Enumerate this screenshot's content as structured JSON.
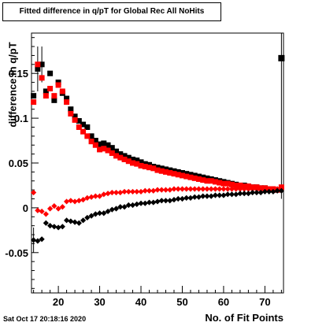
{
  "chart_data": {
    "type": "scatter",
    "title": "Fitted difference in q/pT for Global Rec All NoHits",
    "xlabel": "No. of Fit Points",
    "ylabel": "difference in q/pT",
    "xlim": [
      13.5,
      74.5
    ],
    "ylim": [
      -0.095,
      0.195
    ],
    "x_ticks": [
      20,
      30,
      40,
      50,
      60,
      70
    ],
    "x_tick_labels": [
      "20",
      "30",
      "40",
      "50",
      "60",
      "70"
    ],
    "y_ticks": [
      -0.05,
      0,
      0.05,
      0.1,
      0.15
    ],
    "y_tick_labels": [
      "-0.05",
      "0",
      "0.05",
      "0.1",
      "0.15"
    ],
    "series": [
      {
        "color": "#000000",
        "marker": "square",
        "points": [
          [
            14,
            0.125
          ],
          [
            15,
            0.155
          ],
          [
            16,
            0.16
          ],
          [
            17,
            0.13
          ],
          [
            18,
            0.15
          ],
          [
            19,
            0.12
          ],
          [
            20,
            0.14
          ],
          [
            21,
            0.128
          ],
          [
            22,
            0.122
          ],
          [
            23,
            0.11
          ],
          [
            24,
            0.102
          ],
          [
            25,
            0.097
          ],
          [
            26,
            0.093
          ],
          [
            27,
            0.09
          ],
          [
            28,
            0.08
          ],
          [
            29,
            0.075
          ],
          [
            30,
            0.071
          ],
          [
            31,
            0.072
          ],
          [
            32,
            0.07
          ],
          [
            33,
            0.067
          ],
          [
            34,
            0.063
          ],
          [
            35,
            0.06
          ],
          [
            36,
            0.058
          ],
          [
            37,
            0.056
          ],
          [
            38,
            0.054
          ],
          [
            39,
            0.053
          ],
          [
            40,
            0.051
          ],
          [
            41,
            0.049
          ],
          [
            42,
            0.048
          ],
          [
            43,
            0.046
          ],
          [
            44,
            0.045
          ],
          [
            45,
            0.044
          ],
          [
            46,
            0.043
          ],
          [
            47,
            0.042
          ],
          [
            48,
            0.041
          ],
          [
            49,
            0.04
          ],
          [
            50,
            0.039
          ],
          [
            51,
            0.038
          ],
          [
            52,
            0.037
          ],
          [
            53,
            0.036
          ],
          [
            54,
            0.035
          ],
          [
            55,
            0.034
          ],
          [
            56,
            0.033
          ],
          [
            57,
            0.032
          ],
          [
            58,
            0.031
          ],
          [
            59,
            0.03
          ],
          [
            60,
            0.029
          ],
          [
            61,
            0.028
          ],
          [
            62,
            0.027
          ],
          [
            63,
            0.026
          ],
          [
            64,
            0.025
          ],
          [
            65,
            0.025
          ],
          [
            66,
            0.024
          ],
          [
            67,
            0.023
          ],
          [
            68,
            0.023
          ],
          [
            69,
            0.022
          ],
          [
            70,
            0.022
          ],
          [
            71,
            0.021
          ],
          [
            72,
            0.02
          ],
          [
            73,
            0.02
          ],
          [
            74,
            0.167
          ]
        ]
      },
      {
        "color": "#ff0000",
        "marker": "square",
        "points": [
          [
            14,
            0.118
          ],
          [
            15,
            0.16
          ],
          [
            16,
            0.145
          ],
          [
            17,
            0.125
          ],
          [
            18,
            0.133
          ],
          [
            19,
            0.125
          ],
          [
            20,
            0.137
          ],
          [
            21,
            0.13
          ],
          [
            22,
            0.118
          ],
          [
            23,
            0.105
          ],
          [
            24,
            0.098
          ],
          [
            25,
            0.09
          ],
          [
            26,
            0.085
          ],
          [
            27,
            0.08
          ],
          [
            28,
            0.074
          ],
          [
            29,
            0.07
          ],
          [
            30,
            0.065
          ],
          [
            31,
            0.066
          ],
          [
            32,
            0.064
          ],
          [
            33,
            0.061
          ],
          [
            34,
            0.058
          ],
          [
            35,
            0.056
          ],
          [
            36,
            0.054
          ],
          [
            37,
            0.052
          ],
          [
            38,
            0.05
          ],
          [
            39,
            0.049
          ],
          [
            40,
            0.047
          ],
          [
            41,
            0.046
          ],
          [
            42,
            0.045
          ],
          [
            43,
            0.044
          ],
          [
            44,
            0.042
          ],
          [
            45,
            0.041
          ],
          [
            46,
            0.04
          ],
          [
            47,
            0.039
          ],
          [
            48,
            0.038
          ],
          [
            49,
            0.037
          ],
          [
            50,
            0.036
          ],
          [
            51,
            0.035
          ],
          [
            52,
            0.034
          ],
          [
            53,
            0.033
          ],
          [
            54,
            0.032
          ],
          [
            55,
            0.031
          ],
          [
            56,
            0.03
          ],
          [
            57,
            0.03
          ],
          [
            58,
            0.029
          ],
          [
            59,
            0.028
          ],
          [
            60,
            0.027
          ],
          [
            61,
            0.027
          ],
          [
            62,
            0.026
          ],
          [
            63,
            0.025
          ],
          [
            64,
            0.025
          ],
          [
            65,
            0.024
          ],
          [
            66,
            0.024
          ],
          [
            67,
            0.023
          ],
          [
            68,
            0.023
          ],
          [
            69,
            0.022
          ],
          [
            70,
            0.022
          ],
          [
            71,
            0.021
          ],
          [
            72,
            0.021
          ],
          [
            73,
            0.02
          ],
          [
            74,
            0.023
          ]
        ]
      },
      {
        "color": "#ff0000",
        "marker": "diamond",
        "points": [
          [
            14,
            0.017
          ],
          [
            15,
            -0.003
          ],
          [
            16,
            -0.004
          ],
          [
            17,
            -0.007
          ],
          [
            18,
            -0.001
          ],
          [
            19,
            0.002
          ],
          [
            20,
            -0.001
          ],
          [
            21,
            0.001
          ],
          [
            22,
            0.007
          ],
          [
            23,
            0.008
          ],
          [
            24,
            0.007
          ],
          [
            25,
            0.008
          ],
          [
            26,
            0.009
          ],
          [
            27,
            0.011
          ],
          [
            28,
            0.012
          ],
          [
            29,
            0.013
          ],
          [
            30,
            0.013
          ],
          [
            31,
            0.015
          ],
          [
            32,
            0.016
          ],
          [
            33,
            0.017
          ],
          [
            34,
            0.017
          ],
          [
            35,
            0.017
          ],
          [
            36,
            0.018
          ],
          [
            37,
            0.018
          ],
          [
            38,
            0.018
          ],
          [
            39,
            0.018
          ],
          [
            40,
            0.018
          ],
          [
            41,
            0.019
          ],
          [
            42,
            0.019
          ],
          [
            43,
            0.019
          ],
          [
            44,
            0.02
          ],
          [
            45,
            0.02
          ],
          [
            46,
            0.02
          ],
          [
            47,
            0.02
          ],
          [
            48,
            0.021
          ],
          [
            49,
            0.021
          ],
          [
            50,
            0.021
          ],
          [
            51,
            0.021
          ],
          [
            52,
            0.021
          ],
          [
            53,
            0.021
          ],
          [
            54,
            0.021
          ],
          [
            55,
            0.021
          ],
          [
            56,
            0.021
          ],
          [
            57,
            0.021
          ],
          [
            58,
            0.021
          ],
          [
            59,
            0.021
          ],
          [
            60,
            0.021
          ],
          [
            61,
            0.021
          ],
          [
            62,
            0.021
          ],
          [
            63,
            0.021
          ],
          [
            64,
            0.021
          ],
          [
            65,
            0.021
          ],
          [
            66,
            0.021
          ],
          [
            67,
            0.021
          ],
          [
            68,
            0.021
          ],
          [
            69,
            0.021
          ],
          [
            70,
            0.021
          ],
          [
            71,
            0.021
          ],
          [
            72,
            0.021
          ],
          [
            73,
            0.021
          ],
          [
            74,
            0.021
          ]
        ]
      },
      {
        "color": "#000000",
        "marker": "diamond",
        "points": [
          [
            14,
            -0.036
          ],
          [
            15,
            -0.037
          ],
          [
            16,
            -0.035
          ],
          [
            17,
            -0.017
          ],
          [
            18,
            -0.02
          ],
          [
            19,
            -0.021
          ],
          [
            20,
            -0.022
          ],
          [
            21,
            -0.021
          ],
          [
            22,
            -0.014
          ],
          [
            23,
            -0.015
          ],
          [
            24,
            -0.016
          ],
          [
            25,
            -0.017
          ],
          [
            26,
            -0.014
          ],
          [
            27,
            -0.011
          ],
          [
            28,
            -0.009
          ],
          [
            29,
            -0.007
          ],
          [
            30,
            -0.006
          ],
          [
            31,
            -0.006
          ],
          [
            32,
            -0.004
          ],
          [
            33,
            -0.002
          ],
          [
            34,
            -0.001
          ],
          [
            35,
            0.001
          ],
          [
            36,
            0.001
          ],
          [
            37,
            0.003
          ],
          [
            38,
            0.003
          ],
          [
            39,
            0.004
          ],
          [
            40,
            0.005
          ],
          [
            41,
            0.005
          ],
          [
            42,
            0.006
          ],
          [
            43,
            0.006
          ],
          [
            44,
            0.007
          ],
          [
            45,
            0.008
          ],
          [
            46,
            0.008
          ],
          [
            47,
            0.008
          ],
          [
            48,
            0.009
          ],
          [
            49,
            0.01
          ],
          [
            50,
            0.01
          ],
          [
            51,
            0.011
          ],
          [
            52,
            0.011
          ],
          [
            53,
            0.012
          ],
          [
            54,
            0.012
          ],
          [
            55,
            0.013
          ],
          [
            56,
            0.013
          ],
          [
            57,
            0.013
          ],
          [
            58,
            0.014
          ],
          [
            59,
            0.014
          ],
          [
            60,
            0.014
          ],
          [
            61,
            0.015
          ],
          [
            62,
            0.015
          ],
          [
            63,
            0.015
          ],
          [
            64,
            0.016
          ],
          [
            65,
            0.016
          ],
          [
            66,
            0.016
          ],
          [
            67,
            0.017
          ],
          [
            68,
            0.017
          ],
          [
            69,
            0.017
          ],
          [
            70,
            0.018
          ],
          [
            71,
            0.018
          ],
          [
            72,
            0.018
          ],
          [
            73,
            0.019
          ],
          [
            74,
            0.019
          ]
        ]
      }
    ],
    "error_bars": [
      {
        "x": 74,
        "y": 0.167,
        "low": 0.01,
        "high": 0.195
      },
      {
        "x": 15,
        "y": 0.155,
        "low": 0.13,
        "high": 0.18
      },
      {
        "x": 16,
        "y": 0.16,
        "low": 0.14,
        "high": 0.18
      },
      {
        "x": 14,
        "y": -0.036,
        "low": -0.05,
        "high": -0.022
      }
    ],
    "grid": false,
    "legend": "none"
  },
  "footer": {
    "datestamp": "Sat Oct 17 20:18:16 2020"
  }
}
